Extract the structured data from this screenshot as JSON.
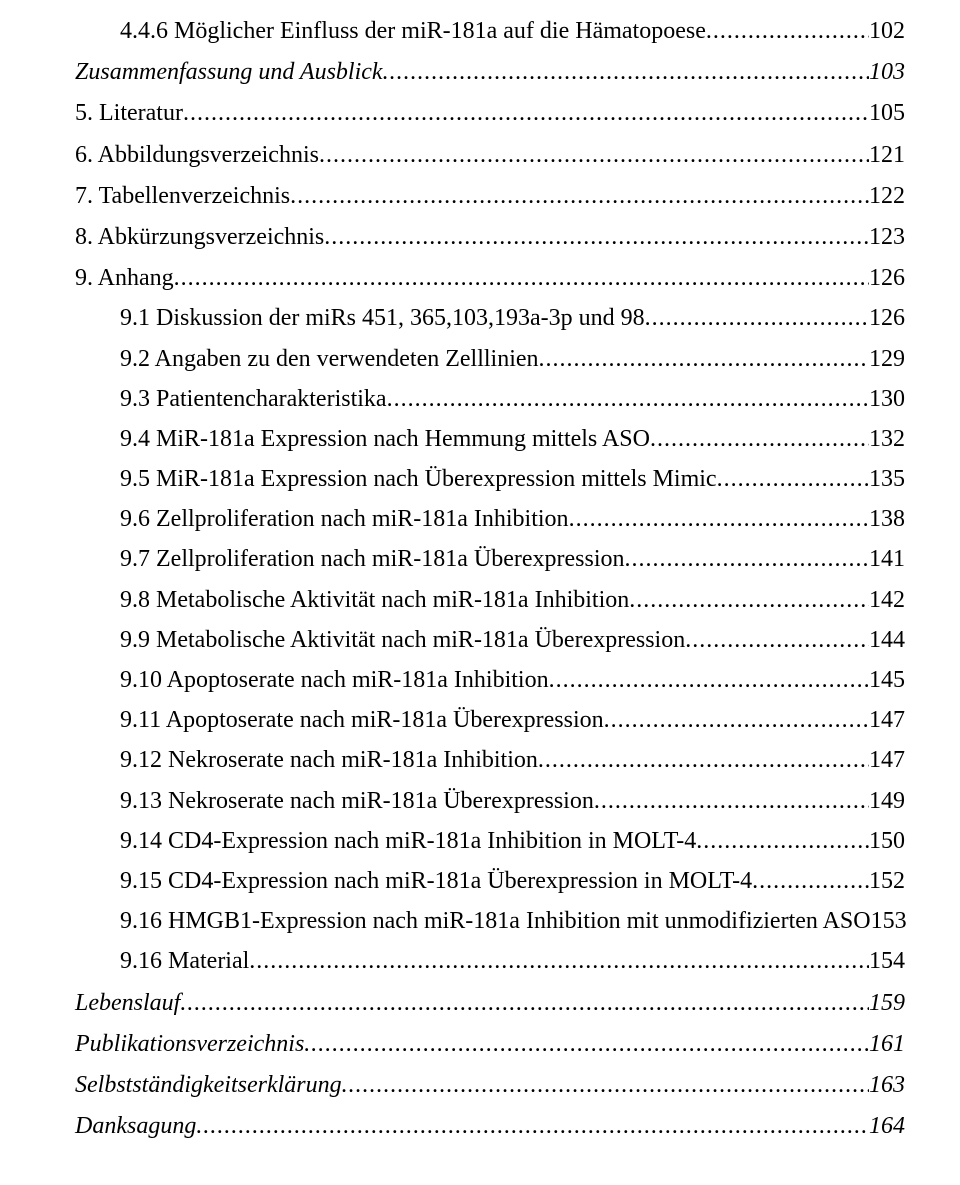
{
  "text_color": "#000000",
  "background_color": "#ffffff",
  "font_family": "Times New Roman",
  "base_fontsize_pt": 18,
  "entries": [
    {
      "title": "4.4.6 Möglicher Einfluss der miR-181a auf die Hämatopoese",
      "page": "102",
      "indent": 1,
      "italic": false
    },
    {
      "title": "Zusammenfassung und Ausblick",
      "page": "103",
      "indent": 2,
      "italic": true,
      "gap": true
    },
    {
      "title": "5. Literatur",
      "page": "105",
      "indent": 2,
      "italic": false,
      "gap": true
    },
    {
      "title": "6. Abbildungsverzeichnis",
      "page": "121",
      "indent": 2,
      "italic": false,
      "gap": true
    },
    {
      "title": "7. Tabellenverzeichnis",
      "page": "122",
      "indent": 2,
      "italic": false,
      "gap": true
    },
    {
      "title": "8. Abkürzungsverzeichnis",
      "page": "123",
      "indent": 2,
      "italic": false,
      "gap": true
    },
    {
      "title": "9. Anhang",
      "page": "126",
      "indent": 2,
      "italic": false,
      "gap": true
    },
    {
      "title": "9.1 Diskussion der miRs 451, 365,103,193a-3p und 98",
      "page": "126",
      "indent": 1,
      "italic": false
    },
    {
      "title": "9.2 Angaben zu den verwendeten Zelllinien",
      "page": "129",
      "indent": 1,
      "italic": false
    },
    {
      "title": "9.3 Patientencharakteristika",
      "page": "130",
      "indent": 1,
      "italic": false
    },
    {
      "title": "9.4 MiR-181a Expression nach Hemmung mittels ASO",
      "page": "132",
      "indent": 1,
      "italic": false
    },
    {
      "title": "9.5 MiR-181a Expression nach Überexpression mittels Mimic",
      "page": "135",
      "indent": 1,
      "italic": false
    },
    {
      "title": "9.6 Zellproliferation nach miR-181a Inhibition",
      "page": "138",
      "indent": 1,
      "italic": false
    },
    {
      "title": "9.7 Zellproliferation nach miR-181a Überexpression",
      "page": "141",
      "indent": 1,
      "italic": false
    },
    {
      "title": "9.8 Metabolische Aktivität nach miR-181a Inhibition",
      "page": "142",
      "indent": 1,
      "italic": false
    },
    {
      "title": "9.9 Metabolische Aktivität nach miR-181a Überexpression",
      "page": "144",
      "indent": 1,
      "italic": false
    },
    {
      "title": "9.10 Apoptoserate nach miR-181a Inhibition",
      "page": "145",
      "indent": 1,
      "italic": false
    },
    {
      "title": "9.11 Apoptoserate nach miR-181a Überexpression",
      "page": "147",
      "indent": 1,
      "italic": false
    },
    {
      "title": "9.12 Nekroserate nach miR-181a Inhibition",
      "page": "147",
      "indent": 1,
      "italic": false
    },
    {
      "title": "9.13 Nekroserate nach miR-181a Überexpression",
      "page": "149",
      "indent": 1,
      "italic": false
    },
    {
      "title": "9.14 CD4-Expression nach miR-181a Inhibition in MOLT-4",
      "page": "150",
      "indent": 1,
      "italic": false
    },
    {
      "title": "9.15 CD4-Expression nach miR-181a Überexpression in MOLT-4",
      "page": "152",
      "indent": 1,
      "italic": false
    },
    {
      "title": "9.16 HMGB1-Expression nach miR-181a Inhibition mit unmodifizierten ASO",
      "page": "153",
      "indent": 1,
      "italic": false
    },
    {
      "title": "9.16 Material",
      "page": "154",
      "indent": 1,
      "italic": false
    },
    {
      "title": "Lebenslauf",
      "page": "159",
      "indent": 2,
      "italic": true,
      "gap": true
    },
    {
      "title": "Publikationsverzeichnis",
      "page": "161",
      "indent": 2,
      "italic": true,
      "gap": true
    },
    {
      "title": "Selbstständigkeitserklärung",
      "page": "163",
      "indent": 2,
      "italic": true,
      "gap": true
    },
    {
      "title": "Danksagung",
      "page": "164",
      "indent": 2,
      "italic": true,
      "gap": true
    }
  ]
}
